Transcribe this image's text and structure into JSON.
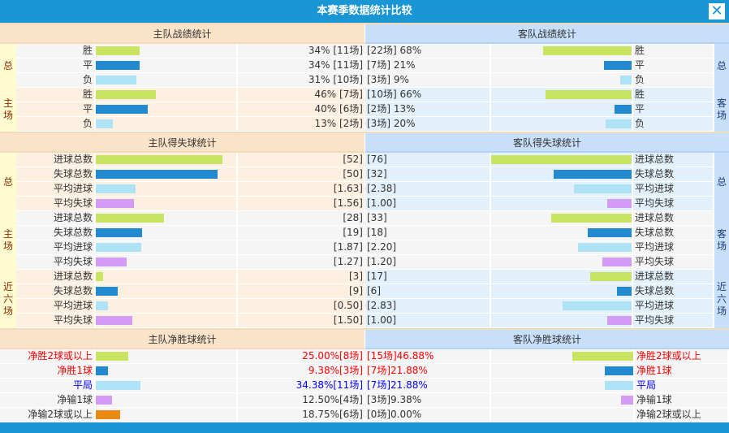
{
  "title": "本赛季数据统计比较",
  "colors": {
    "win": "#c8e462",
    "draw": "#238ad0",
    "loss": "#aee3f5",
    "avg_lost": "#d59cf5",
    "orange": "#e88a14",
    "red": "#ff0000",
    "blue": "#0000ff"
  },
  "record": {
    "home_header": "主队战绩统计",
    "away_header": "客队战绩统计",
    "home_groups": [
      {
        "label": "总",
        "rows": [
          {
            "name": "胜",
            "pct": 34,
            "text": "34% [11场]"
          },
          {
            "name": "平",
            "pct": 34,
            "text": "34% [11场]"
          },
          {
            "name": "负",
            "pct": 31,
            "text": "31% [10场]"
          }
        ]
      },
      {
        "label": "主场",
        "rows": [
          {
            "name": "胜",
            "pct": 46,
            "text": "46% [7场]"
          },
          {
            "name": "平",
            "pct": 40,
            "text": "40% [6场]"
          },
          {
            "name": "负",
            "pct": 13,
            "text": "13% [2场]"
          }
        ]
      }
    ],
    "away_groups": [
      {
        "label": "总",
        "rows": [
          {
            "name": "胜",
            "pct": 68,
            "text": "[22场] 68%"
          },
          {
            "name": "平",
            "pct": 21,
            "text": "[7场] 21%"
          },
          {
            "name": "负",
            "pct": 9,
            "text": "[3场] 9%"
          }
        ]
      },
      {
        "label": "客场",
        "rows": [
          {
            "name": "胜",
            "pct": 66,
            "text": "[10场] 66%"
          },
          {
            "name": "平",
            "pct": 13,
            "text": "[2场] 13%"
          },
          {
            "name": "负",
            "pct": 20,
            "text": "[3场] 20%"
          }
        ]
      }
    ]
  },
  "goals": {
    "home_header": "主队得失球统计",
    "away_header": "客队得失球统计",
    "home_groups": [
      {
        "label": "总",
        "rows": [
          {
            "name": "进球总数",
            "value": 52,
            "text": "[52]"
          },
          {
            "name": "失球总数",
            "value": 50,
            "text": "[50]"
          },
          {
            "name": "平均进球",
            "value": 1.63,
            "text": "[1.63]"
          },
          {
            "name": "平均失球",
            "value": 1.56,
            "text": "[1.56]"
          }
        ]
      },
      {
        "label": "主场",
        "rows": [
          {
            "name": "进球总数",
            "value": 28,
            "text": "[28]"
          },
          {
            "name": "失球总数",
            "value": 19,
            "text": "[19]"
          },
          {
            "name": "平均进球",
            "value": 1.87,
            "text": "[1.87]"
          },
          {
            "name": "平均失球",
            "value": 1.27,
            "text": "[1.27]"
          }
        ]
      },
      {
        "label": "近六场",
        "rows": [
          {
            "name": "进球总数",
            "value": 3,
            "text": "[3]"
          },
          {
            "name": "失球总数",
            "value": 9,
            "text": "[9]"
          },
          {
            "name": "平均进球",
            "value": 0.5,
            "text": "[0.50]"
          },
          {
            "name": "平均失球",
            "value": 1.5,
            "text": "[1.50]"
          }
        ]
      }
    ],
    "away_groups": [
      {
        "label": "总",
        "rows": [
          {
            "name": "进球总数",
            "value": 76,
            "text": "[76]"
          },
          {
            "name": "失球总数",
            "value": 32,
            "text": "[32]"
          },
          {
            "name": "平均进球",
            "value": 2.38,
            "text": "[2.38]"
          },
          {
            "name": "平均失球",
            "value": 1.0,
            "text": "[1.00]"
          }
        ]
      },
      {
        "label": "客场",
        "rows": [
          {
            "name": "进球总数",
            "value": 33,
            "text": "[33]"
          },
          {
            "name": "失球总数",
            "value": 18,
            "text": "[18]"
          },
          {
            "name": "平均进球",
            "value": 2.2,
            "text": "[2.20]"
          },
          {
            "name": "平均失球",
            "value": 1.2,
            "text": "[1.20]"
          }
        ]
      },
      {
        "label": "近六场",
        "rows": [
          {
            "name": "进球总数",
            "value": 17,
            "text": "[17]"
          },
          {
            "name": "失球总数",
            "value": 6,
            "text": "[6]"
          },
          {
            "name": "平均进球",
            "value": 2.83,
            "text": "[2.83]"
          },
          {
            "name": "平均失球",
            "value": 1.0,
            "text": "[1.00]"
          }
        ]
      }
    ]
  },
  "net": {
    "home_header": "主队净胜球统计",
    "away_header": "客队净胜球统计",
    "home_rows": [
      {
        "name": "净胜2球或以上",
        "pct": 25.0,
        "text": "25.00%[8场]",
        "tone": "red"
      },
      {
        "name": "净胜1球",
        "pct": 9.38,
        "text": "9.38%[3场]",
        "tone": "red"
      },
      {
        "name": "平局",
        "pct": 34.38,
        "text": "34.38%[11场]",
        "tone": "blue"
      },
      {
        "name": "净输1球",
        "pct": 12.5,
        "text": "12.50%[4场]",
        "tone": ""
      },
      {
        "name": "净输2球或以上",
        "pct": 18.75,
        "text": "18.75%[6场]",
        "tone": ""
      }
    ],
    "away_rows": [
      {
        "name": "净胜2球或以上",
        "pct": 46.88,
        "text": "[15场]46.88%",
        "tone": "red"
      },
      {
        "name": "净胜1球",
        "pct": 21.88,
        "text": "[7场]21.88%",
        "tone": "red"
      },
      {
        "name": "平局",
        "pct": 21.88,
        "text": "[7场]21.88%",
        "tone": "blue"
      },
      {
        "name": "净输1球",
        "pct": 9.38,
        "text": "[3场]9.38%",
        "tone": ""
      },
      {
        "name": "净输2球或以上",
        "pct": 0,
        "text": "[0场]0.00%",
        "tone": ""
      }
    ]
  }
}
